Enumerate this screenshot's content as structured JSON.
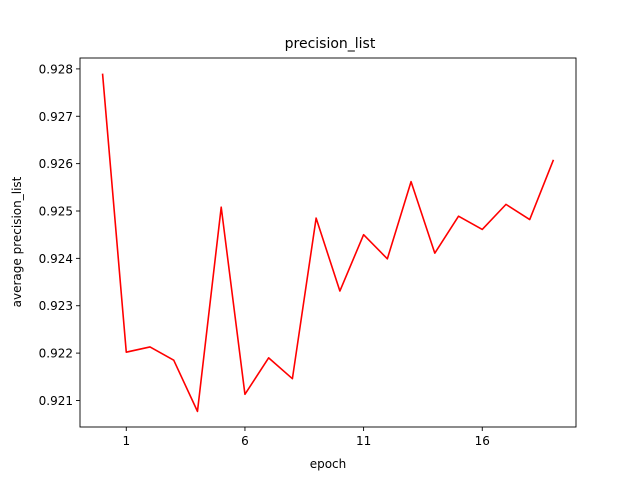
{
  "chart_data": {
    "type": "line",
    "title": "precision_list",
    "xlabel": "epoch",
    "ylabel": "average precision_list",
    "x": [
      0,
      1,
      2,
      3,
      4,
      5,
      6,
      7,
      8,
      9,
      10,
      11,
      12,
      13,
      14,
      15,
      16,
      17,
      18,
      19
    ],
    "y": [
      0.9279,
      0.92202,
      0.92213,
      0.92185,
      0.92077,
      0.92508,
      0.92113,
      0.9219,
      0.92146,
      0.92485,
      0.92331,
      0.9245,
      0.92399,
      0.92562,
      0.92411,
      0.92489,
      0.92461,
      0.92514,
      0.92482,
      0.92608
    ],
    "xticks": [
      1,
      6,
      11,
      16
    ],
    "xtick_labels": [
      "1",
      "6",
      "11",
      "16"
    ],
    "yticks": [
      0.921,
      0.922,
      0.923,
      0.924,
      0.925,
      0.926,
      0.927,
      0.928
    ],
    "ytick_labels": [
      "0.921",
      "0.922",
      "0.923",
      "0.924",
      "0.925",
      "0.926",
      "0.927",
      "0.928"
    ],
    "xlim": [
      -0.95,
      19.95
    ],
    "ylim": [
      0.92044,
      0.92823
    ],
    "grid": false,
    "line_color": "#ff0000"
  }
}
